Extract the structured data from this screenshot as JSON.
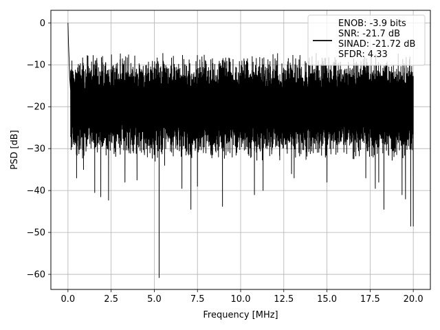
{
  "chart_data": {
    "type": "line",
    "title": "",
    "xlabel": "Frequency [MHz]",
    "ylabel": "PSD [dB]",
    "xlim": [
      -0.99,
      20.99
    ],
    "ylim": [
      -63.6,
      3.0
    ],
    "xticks": [
      0.0,
      2.5,
      5.0,
      7.5,
      10.0,
      12.5,
      15.0,
      17.5,
      20.0
    ],
    "xtick_labels": [
      "0.0",
      "2.5",
      "5.0",
      "7.5",
      "10.0",
      "12.5",
      "15.0",
      "17.5",
      "20.0"
    ],
    "yticks": [
      0,
      -10,
      -20,
      -30,
      -40,
      -50,
      -60
    ],
    "ytick_labels": [
      "0",
      "−10",
      "−20",
      "−30",
      "−40",
      "−50",
      "−60"
    ],
    "grid": true,
    "legend_position": "top-right",
    "series": [
      {
        "name": "ENOB: -3.9 bits\nSNR: -21.7 dB\nSINAD: -21.72 dB\nSFDR: 4.33",
        "color": "#000000",
        "noise_band": {
          "upper": -10,
          "lower": -30,
          "mean": -20
        },
        "x": [
          0.0,
          0.03,
          0.06,
          0.1,
          0.15,
          0.5,
          0.9,
          1.55,
          1.9,
          2.35,
          3.3,
          4.0,
          4.6,
          5.05,
          5.28,
          5.6,
          6.6,
          7.12,
          7.5,
          8.95,
          10.8,
          11.3,
          12.95,
          13.1,
          15.0,
          17.25,
          17.8,
          18.0,
          18.3,
          19.35,
          19.55,
          19.85,
          20.0
        ],
        "y": [
          0.0,
          -5.0,
          -8.0,
          -13.0,
          -16.0,
          -37.0,
          -35.0,
          -40.5,
          -41.5,
          -42.3,
          -38.0,
          -37.5,
          -32.0,
          -33.0,
          -60.8,
          -34.0,
          -39.5,
          -44.5,
          -39.0,
          -43.8,
          -41.0,
          -40.0,
          -36.0,
          -37.0,
          -38.0,
          -37.0,
          -39.5,
          -38.0,
          -44.5,
          -41.0,
          -42.0,
          -48.5,
          -48.5
        ]
      }
    ]
  }
}
